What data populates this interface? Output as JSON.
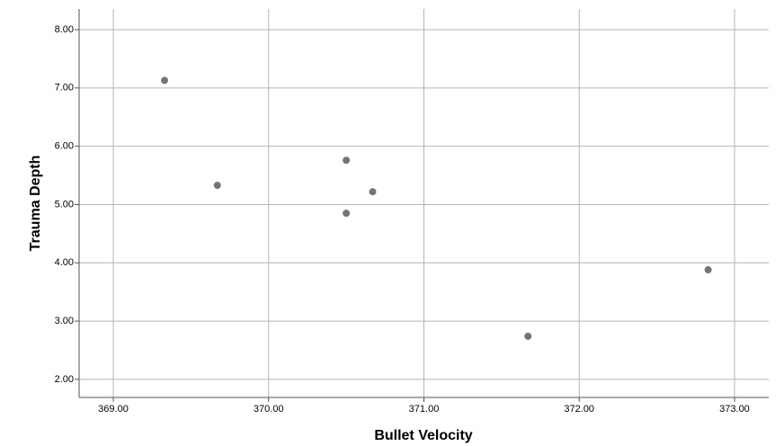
{
  "chart_data": {
    "type": "scatter",
    "x_label": "Bullet Velocity",
    "y_label": "Trauma Depth",
    "x": [
      369.33,
      369.67,
      370.5,
      370.67,
      370.5,
      371.67,
      372.83
    ],
    "series": [
      {
        "color": "#747474",
        "values": [
          7.13,
          5.33,
          5.76,
          5.22,
          4.85,
          2.74,
          3.88
        ]
      }
    ],
    "xlim": [
      368.78,
      373.22
    ],
    "xticks": [
      {
        "value": 369,
        "label": "369.00"
      },
      {
        "value": 370,
        "label": "370.00"
      },
      {
        "value": 371,
        "label": "371.00"
      },
      {
        "value": 372,
        "label": "372.00"
      },
      {
        "value": 373,
        "label": "373.00"
      }
    ],
    "ylim": [
      1.69,
      8.355
    ],
    "yticks": [
      {
        "value": 2,
        "label": "2.00"
      },
      {
        "value": 3,
        "label": "3.00"
      },
      {
        "value": 4,
        "label": "4.00"
      },
      {
        "value": 5,
        "label": "5.00"
      },
      {
        "value": 6,
        "label": "6.00"
      },
      {
        "value": 7,
        "label": "7.00"
      },
      {
        "value": 8,
        "label": "8.00"
      }
    ],
    "grid": true
  }
}
